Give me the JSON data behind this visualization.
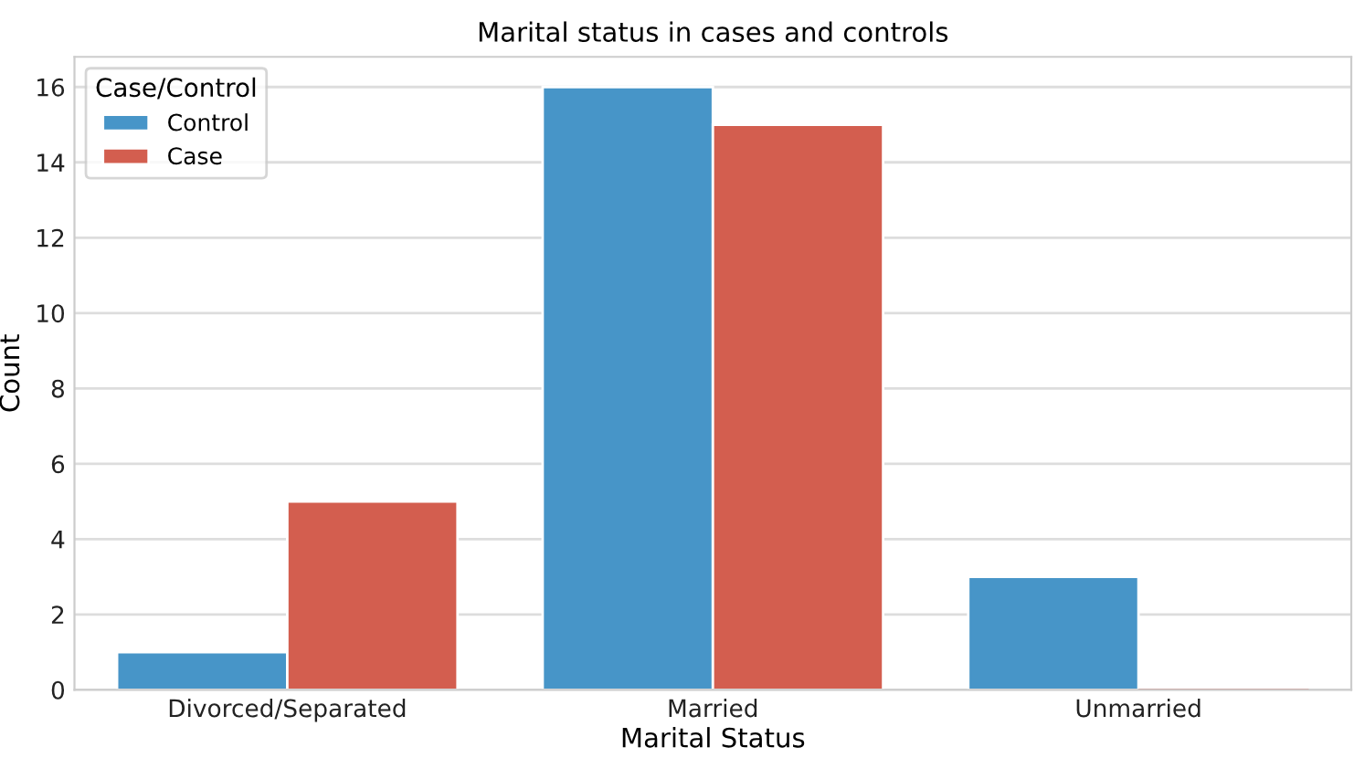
{
  "chart_data": {
    "type": "bar",
    "title": "Marital status in cases and controls",
    "xlabel": "Marital Status",
    "ylabel": "Count",
    "legend_title": "Case/Control",
    "categories": [
      "Divorced/Separated",
      "Married",
      "Unmarried"
    ],
    "series": [
      {
        "name": "Control",
        "color": "#4795c8",
        "values": [
          1,
          16,
          3
        ]
      },
      {
        "name": "Case",
        "color": "#d35e4f",
        "values": [
          5,
          15,
          0
        ]
      }
    ],
    "ylim": [
      0,
      16.8
    ],
    "yticks": [
      0,
      2,
      4,
      6,
      8,
      10,
      12,
      14,
      16
    ],
    "grid": "y",
    "legend": "top left"
  }
}
